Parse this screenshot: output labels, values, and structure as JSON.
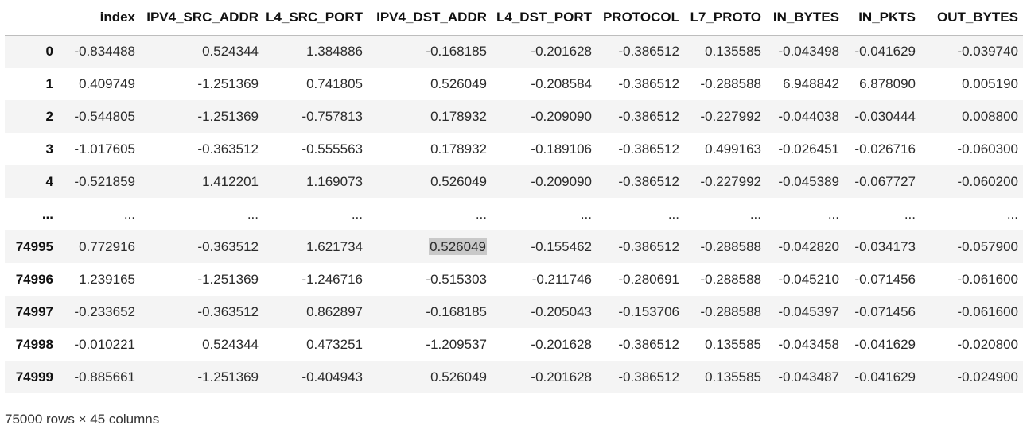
{
  "table": {
    "headers": [
      "",
      "index",
      "IPV4_SRC_ADDR",
      "L4_SRC_PORT",
      "IPV4_DST_ADDR",
      "L4_DST_PORT",
      "PROTOCOL",
      "L7_PROTO",
      "IN_BYTES",
      "IN_PKTS",
      "OUT_BYTES"
    ],
    "rows": [
      {
        "idx": "0",
        "cells": [
          "-0.834488",
          "0.524344",
          "1.384886",
          "-0.168185",
          "-0.201628",
          "-0.386512",
          "0.135585",
          "-0.043498",
          "-0.041629",
          "-0.039740"
        ]
      },
      {
        "idx": "1",
        "cells": [
          "0.409749",
          "-1.251369",
          "0.741805",
          "0.526049",
          "-0.208584",
          "-0.386512",
          "-0.288588",
          "6.948842",
          "6.878090",
          "0.005190"
        ]
      },
      {
        "idx": "2",
        "cells": [
          "-0.544805",
          "-1.251369",
          "-0.757813",
          "0.178932",
          "-0.209090",
          "-0.386512",
          "-0.227992",
          "-0.044038",
          "-0.030444",
          "0.008800"
        ]
      },
      {
        "idx": "3",
        "cells": [
          "-1.017605",
          "-0.363512",
          "-0.555563",
          "0.178932",
          "-0.189106",
          "-0.386512",
          "0.499163",
          "-0.026451",
          "-0.026716",
          "-0.060300"
        ]
      },
      {
        "idx": "4",
        "cells": [
          "-0.521859",
          "1.412201",
          "1.169073",
          "0.526049",
          "-0.209090",
          "-0.386512",
          "-0.227992",
          "-0.045389",
          "-0.067727",
          "-0.060200"
        ]
      },
      {
        "idx": "...",
        "cells": [
          "...",
          "...",
          "...",
          "...",
          "...",
          "...",
          "...",
          "...",
          "...",
          "..."
        ]
      },
      {
        "idx": "74995",
        "cells": [
          "0.772916",
          "-0.363512",
          "1.621734",
          "0.526049",
          "-0.155462",
          "-0.386512",
          "-0.288588",
          "-0.042820",
          "-0.034173",
          "-0.057900"
        ]
      },
      {
        "idx": "74996",
        "cells": [
          "1.239165",
          "-1.251369",
          "-1.246716",
          "-0.515303",
          "-0.211746",
          "-0.280691",
          "-0.288588",
          "-0.045210",
          "-0.071456",
          "-0.061600"
        ]
      },
      {
        "idx": "74997",
        "cells": [
          "-0.233652",
          "-0.363512",
          "0.862897",
          "-0.168185",
          "-0.205043",
          "-0.153706",
          "-0.288588",
          "-0.045397",
          "-0.071456",
          "-0.061600"
        ]
      },
      {
        "idx": "74998",
        "cells": [
          "-0.010221",
          "0.524344",
          "0.473251",
          "-1.209537",
          "-0.201628",
          "-0.386512",
          "0.135585",
          "-0.043458",
          "-0.041629",
          "-0.020800"
        ]
      },
      {
        "idx": "74999",
        "cells": [
          "-0.885661",
          "-1.251369",
          "-0.404943",
          "0.526049",
          "-0.201628",
          "-0.386512",
          "0.135585",
          "-0.043487",
          "-0.041629",
          "-0.024900"
        ]
      }
    ]
  },
  "footer": {
    "summary": "75000 rows × 45 columns"
  }
}
